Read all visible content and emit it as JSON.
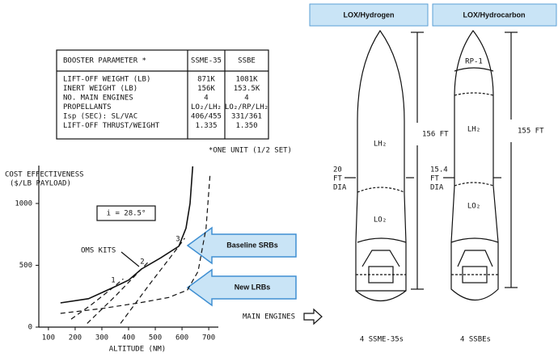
{
  "table": {
    "headers": [
      "BOOSTER PARAMETER *",
      "SSME-35",
      "SSBE"
    ],
    "rows": [
      [
        "LIFT-OFF WEIGHT (LB)",
        "871K",
        "1081K"
      ],
      [
        "INERT WEIGHT (LB)",
        "156K",
        "153.5K"
      ],
      [
        "NO. MAIN ENGINES",
        "4",
        "4"
      ],
      [
        "PROPELLANTS",
        "LO₂/LH₂",
        "LO₂/RP/LH₂"
      ],
      [
        "Isp (SEC):  SL/VAC",
        "406/455",
        "331/361"
      ],
      [
        "LIFT-OFF THRUST/WEIGHT",
        "1.335",
        "1.350"
      ]
    ],
    "footnote": "*ONE UNIT (1/2 SET)"
  },
  "chart_data": {
    "type": "line",
    "ylabel": [
      "COST EFFECTIVENESS",
      "($/LB PAYLOAD)"
    ],
    "xlabel": "ALTITUDE (NM)",
    "xlim": [
      64,
      736
    ],
    "ylim": [
      0,
      1300
    ],
    "xticks": [
      100,
      200,
      300,
      400,
      500,
      600,
      700
    ],
    "yticks": [
      0,
      500,
      1000
    ],
    "series": [
      {
        "style": "solid",
        "color": "#111111",
        "x": [
          145,
          250,
          342,
          400,
          448,
          520,
          588,
          615,
          630,
          640
        ],
        "values": [
          196,
          230,
          320,
          380,
          470,
          560,
          654,
          800,
          1000,
          1300
        ]
      },
      {
        "style": "dashed",
        "color": "#111111",
        "x": [
          145,
          300,
          450,
          550,
          620,
          660,
          690,
          705
        ],
        "values": [
          111,
          150,
          200,
          240,
          300,
          450,
          800,
          1240
        ]
      },
      {
        "style": "dashed",
        "color": "#111111",
        "x": [
          185,
          260,
          342,
          380
        ],
        "values": [
          65,
          180,
          320,
          390
        ]
      },
      {
        "style": "dashed",
        "color": "#111111",
        "x": [
          245,
          350,
          448,
          480
        ],
        "values": [
          30,
          250,
          470,
          540
        ]
      },
      {
        "style": "dashed",
        "color": "#111111",
        "x": [
          370,
          480,
          588,
          610
        ],
        "values": [
          30,
          350,
          654,
          720
        ]
      }
    ],
    "annotations": [
      "i = 28.5°",
      "OMS KITS",
      "1",
      "2",
      "3"
    ]
  },
  "callouts": [
    "Baseline SRBs",
    "New LRBs"
  ],
  "main_engines": "MAIN ENGINES",
  "rockets": [
    {
      "title": "LOX/Hydrogen",
      "height": "156 FT",
      "diameter": [
        "20",
        "FT",
        "DIA"
      ],
      "labels": [
        "LH₂",
        "LO₂"
      ],
      "engines": "4 SSME-35s"
    },
    {
      "title": "LOX/Hydrocarbon",
      "height": "155 FT",
      "diameter": [
        "15.4",
        "FT",
        "DIA"
      ],
      "labels": [
        "RP-1",
        "LH₂",
        "LO₂"
      ],
      "engines": "4 SSBEs"
    }
  ]
}
